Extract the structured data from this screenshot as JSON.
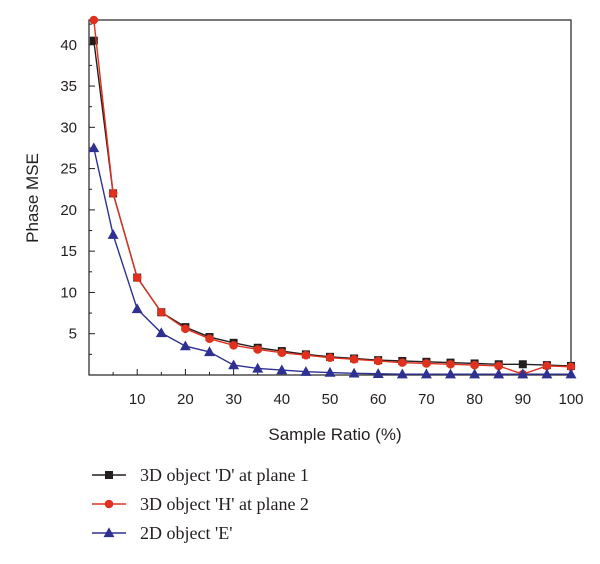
{
  "chart_data": {
    "type": "line",
    "xlabel": "Sample Ratio (%)",
    "ylabel": "Phase MSE",
    "xlim": [
      0,
      100
    ],
    "ylim": [
      0,
      43
    ],
    "xticks": [
      10,
      20,
      30,
      40,
      50,
      60,
      70,
      80,
      90,
      100
    ],
    "yticks": [
      5,
      10,
      15,
      20,
      25,
      30,
      35,
      40
    ],
    "grid": false,
    "legend_position": "bottom",
    "series": [
      {
        "name": "3D object 'D' at plane 1",
        "color": "#231f20",
        "marker": "square",
        "x": [
          1,
          5,
          10,
          15,
          20,
          25,
          30,
          35,
          40,
          45,
          50,
          55,
          60,
          65,
          70,
          75,
          80,
          85,
          90,
          95,
          100
        ],
        "y": [
          40.5,
          22,
          11.8,
          7.6,
          5.8,
          4.6,
          3.9,
          3.3,
          2.9,
          2.5,
          2.2,
          2.0,
          1.8,
          1.7,
          1.6,
          1.5,
          1.4,
          1.3,
          1.3,
          1.2,
          1.1
        ]
      },
      {
        "name": "3D object 'H' at plane 2",
        "color": "#e0301e",
        "marker": "circle",
        "x": [
          1,
          5,
          10,
          15,
          20,
          25,
          30,
          35,
          40,
          45,
          50,
          55,
          60,
          65,
          70,
          75,
          80,
          85,
          90,
          95,
          100
        ],
        "y": [
          43,
          22,
          11.8,
          7.6,
          5.6,
          4.4,
          3.6,
          3.1,
          2.7,
          2.4,
          2.1,
          1.9,
          1.7,
          1.5,
          1.4,
          1.3,
          1.2,
          1.1,
          0.1,
          1.1,
          1.0
        ]
      },
      {
        "name": "2D object 'E'",
        "color": "#2e3192",
        "marker": "triangle",
        "x": [
          1,
          5,
          10,
          15,
          20,
          25,
          30,
          35,
          40,
          45,
          50,
          55,
          60,
          65,
          70,
          75,
          80,
          85,
          90,
          95,
          100
        ],
        "y": [
          27.5,
          17,
          8.0,
          5.1,
          3.5,
          2.8,
          1.2,
          0.8,
          0.6,
          0.4,
          0.3,
          0.2,
          0.15,
          0.1,
          0.1,
          0.1,
          0.1,
          0.1,
          0.1,
          0.1,
          0.1
        ]
      }
    ]
  }
}
